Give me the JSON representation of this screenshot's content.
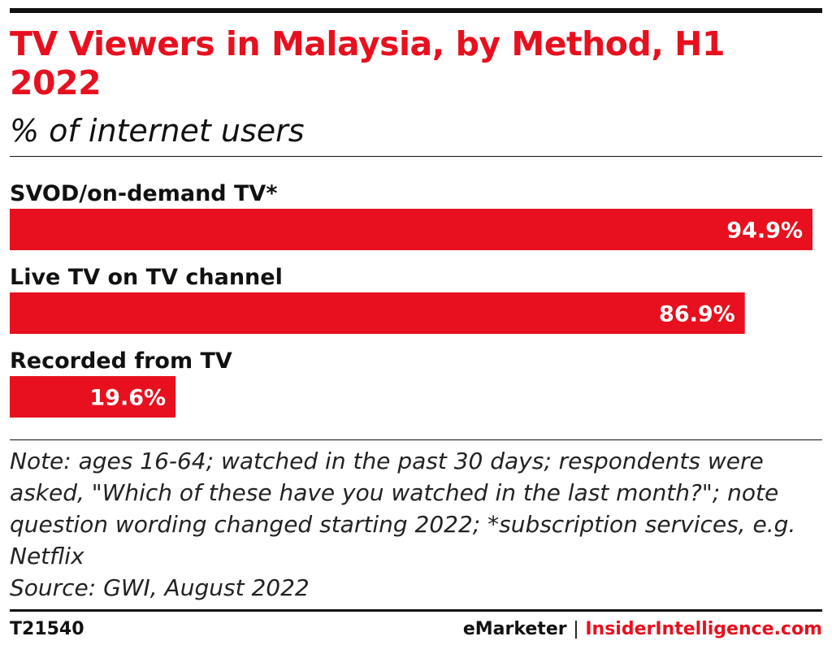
{
  "chart_data": {
    "type": "bar",
    "orientation": "horizontal",
    "title": "TV Viewers in Malaysia, by Method, H1 2022",
    "subtitle": "% of internet users",
    "categories": [
      "SVOD/on-demand TV*",
      "Live TV on TV channel",
      "Recorded from TV"
    ],
    "values": [
      94.9,
      86.9,
      19.6
    ],
    "value_labels": [
      "94.9%",
      "86.9%",
      "19.6%"
    ],
    "xlim": [
      0,
      94.9
    ],
    "grid": false,
    "legend": "none",
    "bar_color": "#e8101e"
  },
  "note": "Note: ages 16-64; watched in the past 30 days; respondents were asked, \"Which of these have you watched in the last month?\"; note question wording changed starting 2022; *subscription services, e.g. Netflix",
  "source": "Source: GWI, August 2022",
  "footer": {
    "chart_id": "T21540",
    "brand": "eMarketer",
    "separator": "|",
    "site": "InsiderIntelligence.com"
  },
  "colors": {
    "accent": "#e8101e",
    "text": "#111111"
  }
}
